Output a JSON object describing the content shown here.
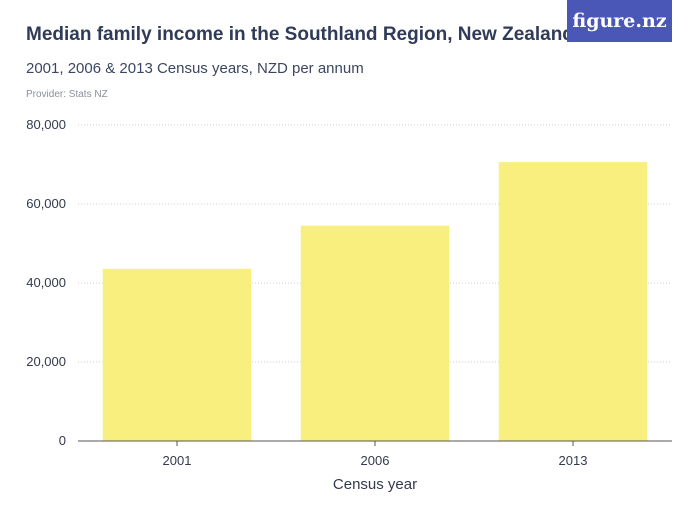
{
  "header": {
    "title": "Median family income in the Southland Region, New Zealand",
    "subtitle": "2001, 2006 & 2013 Census years, NZD per annum",
    "provider": "Provider: Stats NZ",
    "logo_text": "figure.nz"
  },
  "colors": {
    "bar": "#f8ef7e",
    "grid": "#cfcfcf",
    "axis": "#555555",
    "logo_bg": "#4b57b7"
  },
  "chart_data": {
    "type": "bar",
    "categories": [
      "2001",
      "2006",
      "2013"
    ],
    "values": [
      43600,
      54500,
      70600
    ],
    "title": "Median family income in the Southland Region, New Zealand",
    "xlabel": "Census year",
    "ylabel": "",
    "ylim": [
      0,
      80000
    ],
    "yticks": [
      0,
      20000,
      40000,
      60000,
      80000
    ],
    "ytick_labels": [
      "0",
      "20,000",
      "40,000",
      "60,000",
      "80,000"
    ],
    "grid": true,
    "legend": "none"
  }
}
